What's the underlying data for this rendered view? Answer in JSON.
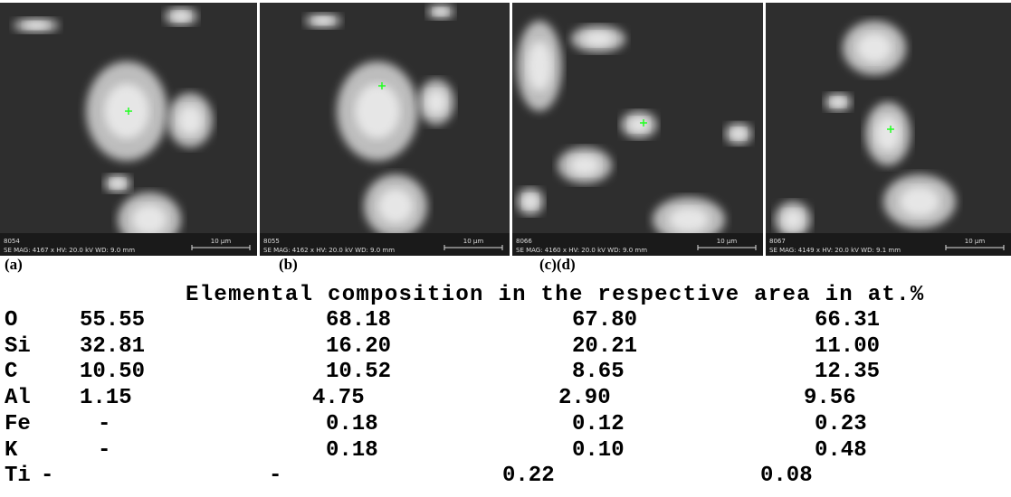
{
  "figure": {
    "panels": [
      {
        "id": "8054",
        "info": "SE MAG: 4167 x HV: 20.0 kV WD: 9.0 mm",
        "scale": "10 μm"
      },
      {
        "id": "8055",
        "info": "SE MAG: 4162 x HV: 20.0 kV WD: 9.0 mm",
        "scale": "10 μm"
      },
      {
        "id": "8066",
        "info": "SE MAG: 4160 x HV: 20.0 kV WD: 9.0 mm",
        "scale": "10 μm"
      },
      {
        "id": "8067",
        "info": "SE MAG: 4149 x HV: 20.0 kV WD: 9.1 mm",
        "scale": "10 μm"
      }
    ],
    "labels": [
      "(a)",
      "(b)",
      "(c)(d)"
    ]
  },
  "table": {
    "title": "Elemental composition in the respective area in at.%",
    "rows": [
      [
        "O",
        "55.55",
        "68.18",
        "67.80",
        "66.31"
      ],
      [
        "Si",
        "32.81",
        "16.20",
        "20.21",
        "11.00"
      ],
      [
        "C",
        "10.50",
        "10.52",
        "8.65",
        "12.35"
      ],
      [
        "Al",
        "1.15",
        "4.75",
        "2.90",
        "9.56"
      ],
      [
        "Fe",
        "-",
        "0.18",
        "0.12",
        "0.23"
      ],
      [
        "K",
        "-",
        "0.18",
        "0.10",
        "0.48"
      ],
      [
        "Ti",
        "-",
        "-",
        "0.22",
        "0.08"
      ]
    ]
  }
}
